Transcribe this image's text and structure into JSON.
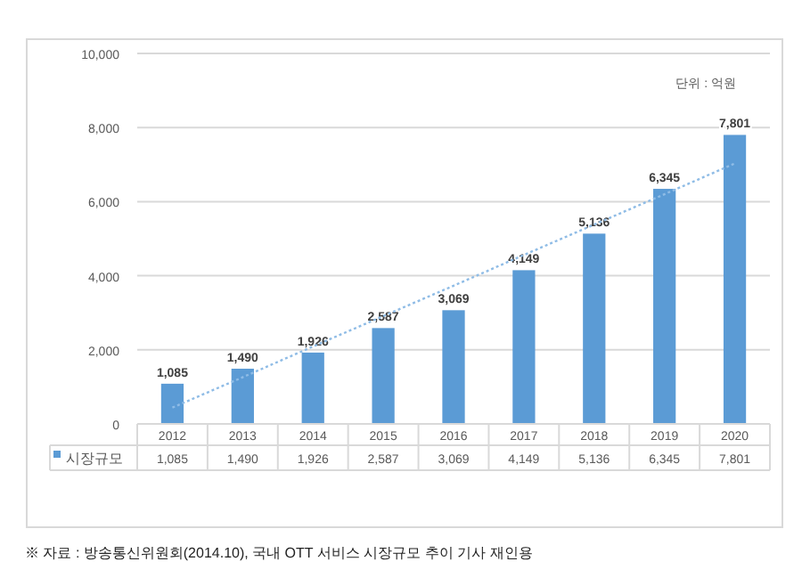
{
  "chart_data": {
    "type": "bar",
    "categories": [
      "2012",
      "2013",
      "2014",
      "2015",
      "2016",
      "2017",
      "2018",
      "2019",
      "2020"
    ],
    "series": [
      {
        "name": "시장규모",
        "color": "#5b9bd5",
        "values": [
          1085,
          1490,
          1926,
          2587,
          3069,
          4149,
          5136,
          6345,
          7801
        ],
        "value_labels": [
          "1,085",
          "1,490",
          "1,926",
          "2,587",
          "3,069",
          "4,149",
          "5,136",
          "6,345",
          "7,801"
        ]
      },
      {
        "type": "line",
        "color": "#8fbce6",
        "line_style": "dotted",
        "values": [
          440,
          1260,
          2090,
          2910,
          3730,
          4560,
          5380,
          6200,
          7030
        ]
      }
    ],
    "ylim": [
      0,
      10000
    ],
    "yticks": [
      {
        "value": 0,
        "label": "0"
      },
      {
        "value": 2000,
        "label": "2,000"
      },
      {
        "value": 4000,
        "label": "4,000"
      },
      {
        "value": 6000,
        "label": "6,000"
      },
      {
        "value": 8000,
        "label": "8,000"
      },
      {
        "value": 10000,
        "label": "10,000"
      }
    ],
    "grid": "y",
    "legend": "bottom",
    "annotations": [
      "단위 : 억원",
      "※ 자료 : 방송통신위원회(2014.10), 국내 OTT 서비스 시장규모 추이 기사 재인용"
    ]
  }
}
